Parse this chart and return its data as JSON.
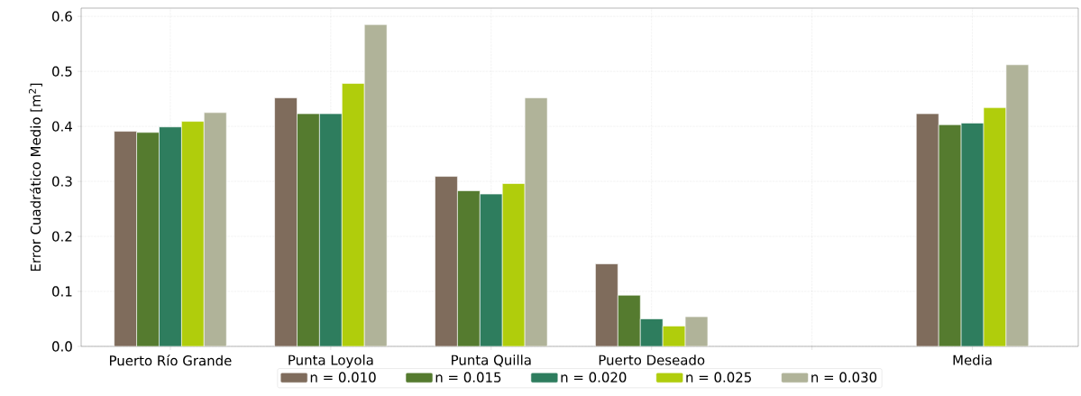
{
  "chart_data": {
    "type": "bar",
    "ylabel": "Error Cuadrático Medio [m$^{2}$]",
    "categories": [
      "Puerto Río Grande",
      "Punta Loyola",
      "Punta Quilla",
      "Puerto Deseado",
      null,
      "Media"
    ],
    "series": [
      {
        "name": "n = 0.010",
        "color": "#7f6c5c",
        "values": [
          0.391,
          0.452,
          0.309,
          0.15,
          null,
          0.423
        ]
      },
      {
        "name": "n = 0.015",
        "color": "#557b2f",
        "values": [
          0.389,
          0.423,
          0.283,
          0.093,
          null,
          0.403
        ]
      },
      {
        "name": "n = 0.020",
        "color": "#2e7d5e",
        "values": [
          0.399,
          0.423,
          0.277,
          0.05,
          null,
          0.406
        ]
      },
      {
        "name": "n = 0.025",
        "color": "#b0cd0c",
        "values": [
          0.409,
          0.478,
          0.296,
          0.037,
          null,
          0.434
        ]
      },
      {
        "name": "n = 0.030",
        "color": "#b0b399",
        "values": [
          0.425,
          0.585,
          0.452,
          0.054,
          null,
          0.512
        ]
      }
    ],
    "ylim": [
      0,
      0.615
    ],
    "yticks": [
      {
        "value": 0,
        "label": "0.0"
      },
      0.1,
      0.2,
      0.3,
      0.4,
      0.5,
      0.6
    ],
    "grid": true,
    "legend": "bottom"
  }
}
